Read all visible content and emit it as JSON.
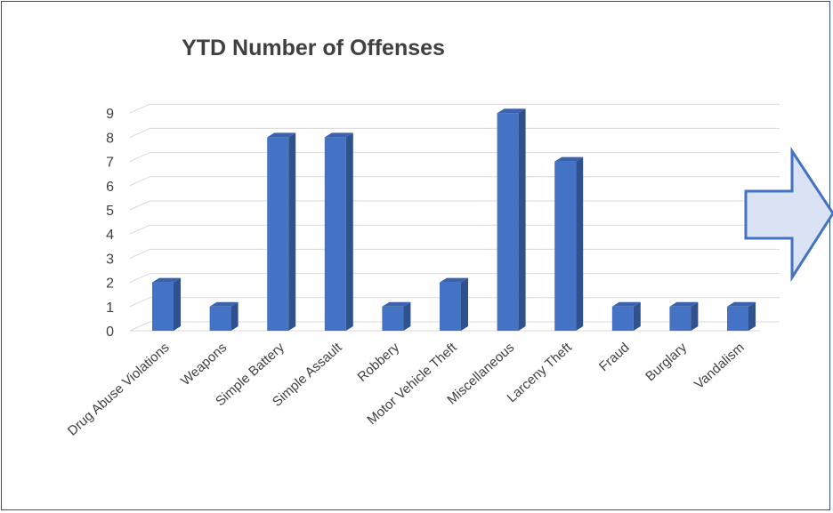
{
  "chart_data": {
    "type": "bar",
    "title": "YTD Number of Offenses",
    "categories": [
      "Drug Abuse Violations",
      "Weapons",
      "Simple Battery",
      "Simple Assault",
      "Robbery",
      "Motor Vehicle Theft",
      "Miscellaneous",
      "Larceny Theft",
      "Fraud",
      "Burglary",
      "Vandalism"
    ],
    "values": [
      2,
      1,
      8,
      8,
      1,
      2,
      9,
      7,
      1,
      1,
      1
    ],
    "ylim": [
      0,
      9
    ],
    "yticks": [
      "0",
      "1",
      "2",
      "3",
      "4",
      "5",
      "6",
      "7",
      "8",
      "9"
    ],
    "grid": true,
    "bar_color": "#4472c4"
  },
  "decoration": {
    "arrow_icon": "right-arrow-icon",
    "arrow_fill": "#dae3f3",
    "arrow_stroke": "#4472c4"
  }
}
